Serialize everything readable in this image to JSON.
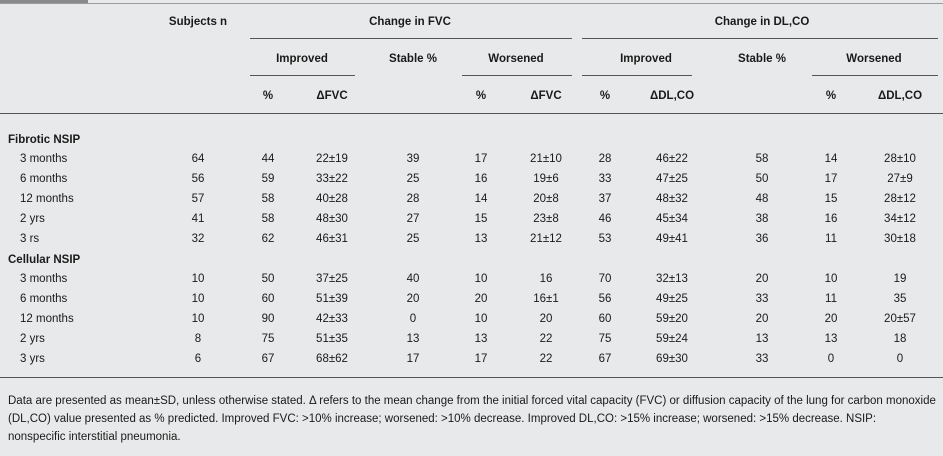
{
  "header": {
    "subjects": "Subjects n",
    "fvc_group": "Change in FVC",
    "dlco_group": "Change in DL,CO",
    "improved": "Improved",
    "stable": "Stable %",
    "worsened": "Worsened",
    "pct": "%",
    "dfvc": "ΔFVC",
    "ddlco": "ΔDL,CO"
  },
  "sections": [
    {
      "title": "Fibrotic NSIP",
      "rows": [
        [
          "3 months",
          "64",
          "44",
          "22±19",
          "39",
          "17",
          "21±10",
          "28",
          "46±22",
          "58",
          "14",
          "28±10"
        ],
        [
          "6 months",
          "56",
          "59",
          "33±22",
          "25",
          "16",
          "19±6",
          "33",
          "47±25",
          "50",
          "17",
          "27±9"
        ],
        [
          "12 months",
          "57",
          "58",
          "40±28",
          "28",
          "14",
          "20±8",
          "37",
          "48±32",
          "48",
          "15",
          "28±12"
        ],
        [
          "2 yrs",
          "41",
          "58",
          "48±30",
          "27",
          "15",
          "23±8",
          "46",
          "45±34",
          "38",
          "16",
          "34±12"
        ],
        [
          "3 rs",
          "32",
          "62",
          "46±31",
          "25",
          "13",
          "21±12",
          "53",
          "49±41",
          "36",
          "11",
          "30±18"
        ]
      ]
    },
    {
      "title": "Cellular NSIP",
      "rows": [
        [
          "3 months",
          "10",
          "50",
          "37±25",
          "40",
          "10",
          "16",
          "70",
          "32±13",
          "20",
          "10",
          "19"
        ],
        [
          "6 months",
          "10",
          "60",
          "51±39",
          "20",
          "20",
          "16±1",
          "56",
          "49±25",
          "33",
          "11",
          "35"
        ],
        [
          "12 months",
          "10",
          "90",
          "42±33",
          "0",
          "10",
          "20",
          "60",
          "59±20",
          "20",
          "20",
          "20±57"
        ],
        [
          "2 yrs",
          "8",
          "75",
          "51±35",
          "13",
          "13",
          "22",
          "75",
          "59±24",
          "13",
          "13",
          "18"
        ],
        [
          "3 yrs",
          "6",
          "67",
          "68±62",
          "17",
          "17",
          "22",
          "67",
          "69±30",
          "33",
          "0",
          "0"
        ]
      ]
    }
  ],
  "footnote": "Data are presented as mean±SD, unless otherwise stated. Δ refers to the mean change from the initial forced vital capacity (FVC) or diffusion capacity of the lung for carbon monoxide (DL,CO) value presented as % predicted. Improved FVC: >10% increase; worsened: >10% decrease. Improved DL,CO: >15% increase; worsened: >15% decrease. NSIP: nonspecific interstitial pneumonia."
}
